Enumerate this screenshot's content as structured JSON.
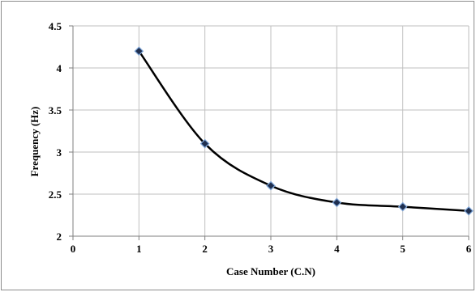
{
  "chart_data": {
    "type": "line",
    "title": "",
    "xlabel": "Case Number (C.N)",
    "ylabel": "Frequency (Hz)",
    "xlim": [
      0,
      6
    ],
    "ylim": [
      2,
      4.5
    ],
    "x_ticks": [
      "0",
      "1",
      "2",
      "3",
      "4",
      "5",
      "6"
    ],
    "y_ticks": [
      "2",
      "2.5",
      "3",
      "3.5",
      "4",
      "4.5"
    ],
    "grid": true,
    "legend": "none",
    "smooth": true,
    "marker": "diamond",
    "colors": {
      "line": "#000000",
      "marker_fill": "#1f2f4f",
      "marker_edge": "#7fa6d8",
      "grid": "#bfbfbf"
    },
    "series": [
      {
        "x": [
          1,
          2,
          3,
          4,
          5,
          6
        ],
        "values": [
          4.2,
          3.1,
          2.6,
          2.4,
          2.35,
          2.3
        ]
      }
    ]
  }
}
